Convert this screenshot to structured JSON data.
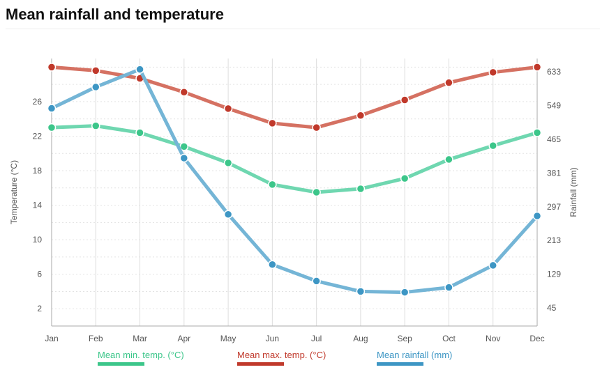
{
  "page": {
    "title": "Mean rainfall and temperature"
  },
  "chart_data": {
    "type": "line",
    "categories": [
      "Jan",
      "Feb",
      "Mar",
      "Apr",
      "May",
      "Jun",
      "Jul",
      "Aug",
      "Sep",
      "Oct",
      "Nov",
      "Dec"
    ],
    "y_left": {
      "label": "Temperature (°C)",
      "ticks": [
        2,
        6,
        10,
        14,
        18,
        22,
        26
      ],
      "range": [
        0,
        31
      ]
    },
    "y_right": {
      "label": "Rainfall (mm)",
      "ticks": [
        45,
        129,
        213,
        297,
        381,
        465,
        549,
        633
      ],
      "range": [
        0,
        666
      ]
    },
    "grid": true,
    "legend_position": "bottom",
    "series": [
      {
        "name": "Mean min. temp. (°C)",
        "axis": "left",
        "color": "#6fd7b0",
        "legend_color": "#3cc68a",
        "marker_color": "#3cc68a",
        "values": [
          23.0,
          23.2,
          22.4,
          20.8,
          18.9,
          16.4,
          15.5,
          15.9,
          17.1,
          19.3,
          20.9,
          22.4
        ]
      },
      {
        "name": "Mean max. temp. (°C)",
        "axis": "left",
        "color": "#d57162",
        "legend_color": "#c0392b",
        "marker_color": "#c0392b",
        "values": [
          30.0,
          29.6,
          28.7,
          27.1,
          25.2,
          23.5,
          23.0,
          24.4,
          26.2,
          28.2,
          29.4,
          30.0
        ]
      },
      {
        "name": "Mean rainfall (mm)",
        "axis": "right",
        "color": "#74b5d6",
        "legend_color": "#3d96c4",
        "marker_color": "#3d96c4",
        "values": [
          542,
          595,
          639,
          418,
          278,
          153,
          112,
          86,
          84,
          96,
          151,
          274
        ]
      }
    ]
  }
}
